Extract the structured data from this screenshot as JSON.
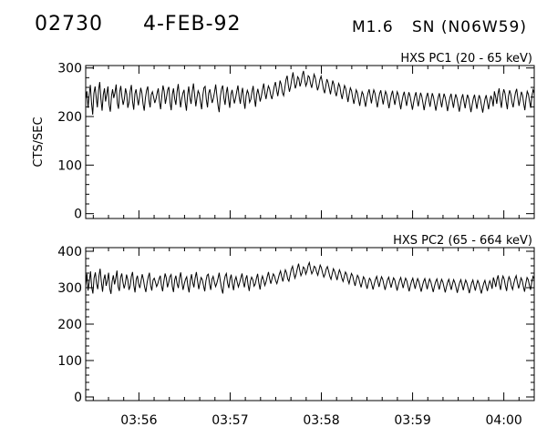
{
  "header": {
    "event_number": "02730",
    "date": "4-FEB-92",
    "flare_class": "M1.6",
    "location": "SN (N06W59)"
  },
  "chart_data": [
    {
      "type": "line",
      "title": "HXS PC1 (20 - 65 keV)",
      "ylabel": "CTS/SEC",
      "ylim": [
        -10,
        305
      ],
      "yticks": [
        0,
        100,
        200,
        300
      ],
      "xlim": [
        "03:55:25",
        "04:00:20"
      ],
      "xticks": [
        "03:56",
        "03:57",
        "03:58",
        "03:59",
        "04:00"
      ],
      "grid": false,
      "series": [
        {
          "x_start": "03:55:25",
          "x_end": "04:00:20",
          "values": [
            236,
            252,
            218,
            246,
            265,
            228,
            204,
            248,
            262,
            238,
            219,
            254,
            271,
            236,
            212,
            245,
            258,
            231,
            246,
            262,
            224,
            210,
            242,
            256,
            238,
            249,
            266,
            228,
            216,
            251,
            263,
            240,
            224,
            236,
            258,
            246,
            218,
            229,
            252,
            265,
            231,
            214,
            247,
            256,
            238,
            223,
            241,
            259,
            248,
            226,
            212,
            238,
            254,
            262,
            233,
            219,
            245,
            251,
            240,
            228,
            236,
            249,
            258,
            231,
            215,
            242,
            264,
            252,
            226,
            239,
            255,
            261,
            229,
            213,
            246,
            258,
            237,
            224,
            251,
            267,
            241,
            219,
            236,
            248,
            255,
            229,
            212,
            245,
            262,
            239,
            226,
            251,
            268,
            244,
            221,
            238,
            253,
            247,
            230,
            215,
            244,
            259,
            262,
            235,
            219,
            248,
            256,
            241,
            228,
            237,
            250,
            266,
            243,
            222,
            209,
            241,
            257,
            264,
            238,
            224,
            249,
            261,
            236,
            218,
            245,
            255,
            240,
            227,
            238,
            252,
            264,
            241,
            226,
            248,
            259,
            233,
            216,
            243,
            254,
            247,
            229,
            235,
            251,
            263,
            238,
            220,
            246,
            257,
            245,
            231,
            242,
            256,
            268,
            249,
            236,
            251,
            263,
            257,
            244,
            236,
            248,
            262,
            271,
            255,
            242,
            258,
            274,
            266,
            249,
            243,
            259,
            276,
            284,
            265,
            251,
            262,
            278,
            291,
            273,
            258,
            266,
            282,
            278,
            262,
            271,
            286,
            294,
            276,
            263,
            270,
            284,
            281,
            268,
            259,
            273,
            287,
            280,
            266,
            254,
            262,
            276,
            283,
            271,
            256,
            248,
            263,
            277,
            270,
            258,
            246,
            261,
            274,
            266,
            251,
            242,
            255,
            268,
            262,
            247,
            236,
            251,
            264,
            258,
            243,
            230,
            246,
            259,
            253,
            238,
            226,
            241,
            255,
            249,
            235,
            222,
            238,
            251,
            246,
            233,
            220,
            236,
            248,
            256,
            241,
            227,
            243,
            255,
            248,
            233,
            219,
            234,
            247,
            254,
            239,
            225,
            240,
            252,
            246,
            231,
            217,
            232,
            245,
            253,
            238,
            224,
            239,
            251,
            244,
            229,
            215,
            230,
            243,
            251,
            236,
            222,
            238,
            250,
            242,
            228,
            214,
            229,
            242,
            250,
            235,
            221,
            237,
            249,
            241,
            227,
            213,
            228,
            241,
            249,
            234,
            220,
            236,
            248,
            240,
            226,
            212,
            227,
            240,
            248,
            233,
            219,
            235,
            247,
            239,
            225,
            211,
            226,
            239,
            247,
            232,
            218,
            234,
            246,
            238,
            224,
            210,
            225,
            238,
            246,
            231,
            217,
            233,
            245,
            237,
            223,
            209,
            224,
            237,
            245,
            230,
            216,
            232,
            244,
            236,
            222,
            208,
            223,
            236,
            244,
            229,
            215,
            231,
            243,
            235,
            221,
            252,
            241,
            226,
            247,
            258,
            234,
            218,
            243,
            256,
            248,
            230,
            215,
            241,
            254,
            246,
            229,
            219,
            236,
            249,
            257,
            238,
            222,
            236,
            251,
            244,
            227,
            213,
            236,
            252,
            246,
            231,
            218,
            241,
            255,
            248
          ]
        }
      ]
    },
    {
      "type": "line",
      "title": "HXS PC2 (65 - 664 keV)",
      "ylabel": "",
      "ylim": [
        -10,
        410
      ],
      "yticks": [
        0,
        100,
        200,
        300,
        400
      ],
      "xlim": [
        "03:55:25",
        "04:00:20"
      ],
      "xticks": [
        "03:56",
        "03:57",
        "03:58",
        "03:59",
        "04:00"
      ],
      "grid": false,
      "series": [
        {
          "x_start": "03:55:25",
          "x_end": "04:00:20",
          "values": [
            306,
            338,
            292,
            318,
            345,
            301,
            284,
            327,
            342,
            311,
            296,
            331,
            352,
            318,
            289,
            322,
            336,
            305,
            319,
            341,
            298,
            283,
            317,
            334,
            309,
            326,
            347,
            303,
            291,
            328,
            339,
            314,
            298,
            312,
            336,
            321,
            294,
            305,
            331,
            343,
            306,
            287,
            322,
            333,
            311,
            299,
            318,
            337,
            323,
            302,
            288,
            313,
            329,
            341,
            307,
            292,
            321,
            326,
            315,
            303,
            311,
            324,
            333,
            306,
            290,
            317,
            339,
            327,
            301,
            314,
            330,
            336,
            304,
            288,
            321,
            333,
            312,
            299,
            326,
            342,
            316,
            294,
            311,
            323,
            330,
            304,
            287,
            320,
            337,
            314,
            301,
            326,
            343,
            319,
            296,
            313,
            328,
            322,
            305,
            290,
            319,
            334,
            337,
            310,
            294,
            323,
            331,
            316,
            303,
            312,
            325,
            341,
            318,
            297,
            284,
            316,
            332,
            339,
            313,
            299,
            324,
            336,
            311,
            293,
            320,
            330,
            315,
            302,
            313,
            327,
            339,
            316,
            301,
            323,
            334,
            308,
            291,
            318,
            329,
            322,
            304,
            310,
            326,
            338,
            313,
            295,
            321,
            332,
            320,
            306,
            317,
            331,
            343,
            324,
            311,
            326,
            338,
            332,
            319,
            311,
            323,
            337,
            346,
            330,
            317,
            333,
            349,
            341,
            324,
            318,
            334,
            351,
            359,
            340,
            326,
            337,
            353,
            366,
            348,
            333,
            341,
            357,
            353,
            337,
            346,
            361,
            369,
            351,
            338,
            345,
            359,
            356,
            343,
            334,
            348,
            362,
            355,
            341,
            329,
            337,
            351,
            358,
            346,
            331,
            323,
            338,
            352,
            345,
            333,
            321,
            336,
            349,
            341,
            326,
            317,
            330,
            343,
            337,
            322,
            311,
            326,
            339,
            333,
            318,
            305,
            321,
            334,
            328,
            313,
            301,
            316,
            330,
            324,
            310,
            297,
            313,
            326,
            321,
            308,
            295,
            311,
            323,
            331,
            316,
            302,
            318,
            330,
            323,
            308,
            294,
            309,
            322,
            329,
            314,
            300,
            315,
            327,
            321,
            306,
            292,
            307,
            320,
            328,
            313,
            299,
            314,
            326,
            319,
            304,
            290,
            305,
            318,
            326,
            311,
            297,
            313,
            325,
            317,
            303,
            289,
            304,
            317,
            325,
            310,
            296,
            312,
            324,
            316,
            302,
            288,
            303,
            316,
            324,
            309,
            295,
            311,
            323,
            315,
            301,
            287,
            302,
            315,
            323,
            308,
            294,
            310,
            322,
            314,
            300,
            286,
            301,
            314,
            322,
            307,
            293,
            309,
            321,
            313,
            299,
            285,
            300,
            313,
            321,
            306,
            292,
            308,
            320,
            312,
            298,
            284,
            299,
            312,
            320,
            305,
            291,
            307,
            319,
            311,
            297,
            328,
            317,
            302,
            323,
            334,
            310,
            294,
            319,
            332,
            324,
            306,
            291,
            317,
            330,
            322,
            305,
            295,
            312,
            325,
            333,
            314,
            298,
            312,
            327,
            320,
            303,
            289,
            312,
            328,
            322,
            307,
            294,
            317,
            331,
            324
          ]
        }
      ]
    }
  ]
}
